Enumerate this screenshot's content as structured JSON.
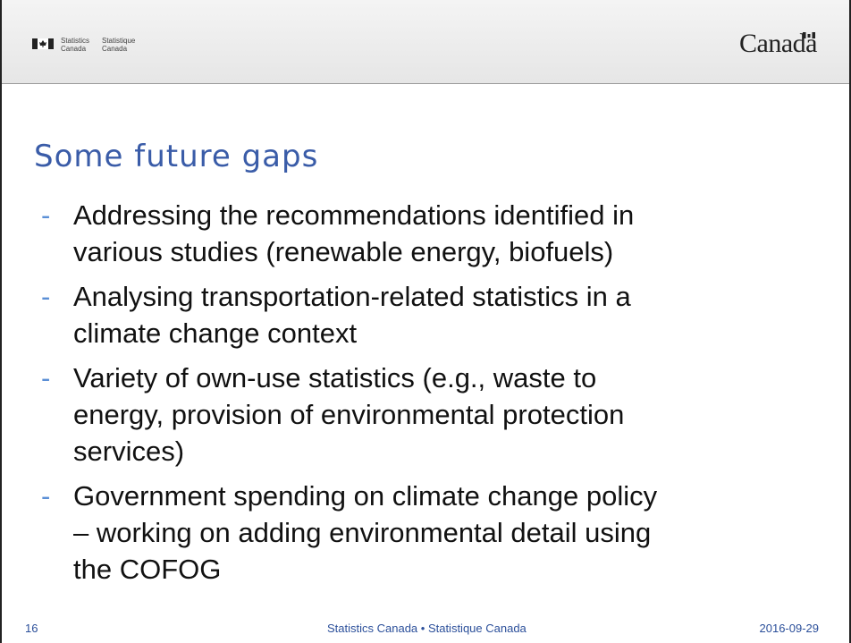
{
  "header": {
    "department_en": [
      "Statistics",
      "Canada"
    ],
    "department_fr": [
      "Statistique",
      "Canada"
    ],
    "wordmark": "Canada"
  },
  "title": "Some future gaps",
  "bullets": [
    [
      "Addressing the recommendations identified in",
      "various studies (renewable energy, biofuels)"
    ],
    [
      "Analysing transportation-related statistics in a",
      "climate change context"
    ],
    [
      "Variety of own-use statistics (e.g., waste to",
      "energy, provision of environmental protection",
      "services)"
    ],
    [
      "Government spending on climate change policy",
      "– working on adding environmental detail using",
      "the COFOG"
    ]
  ],
  "footer": {
    "page": "16",
    "center": "Statistics Canada • Statistique Canada",
    "date": "2016-09-29"
  }
}
